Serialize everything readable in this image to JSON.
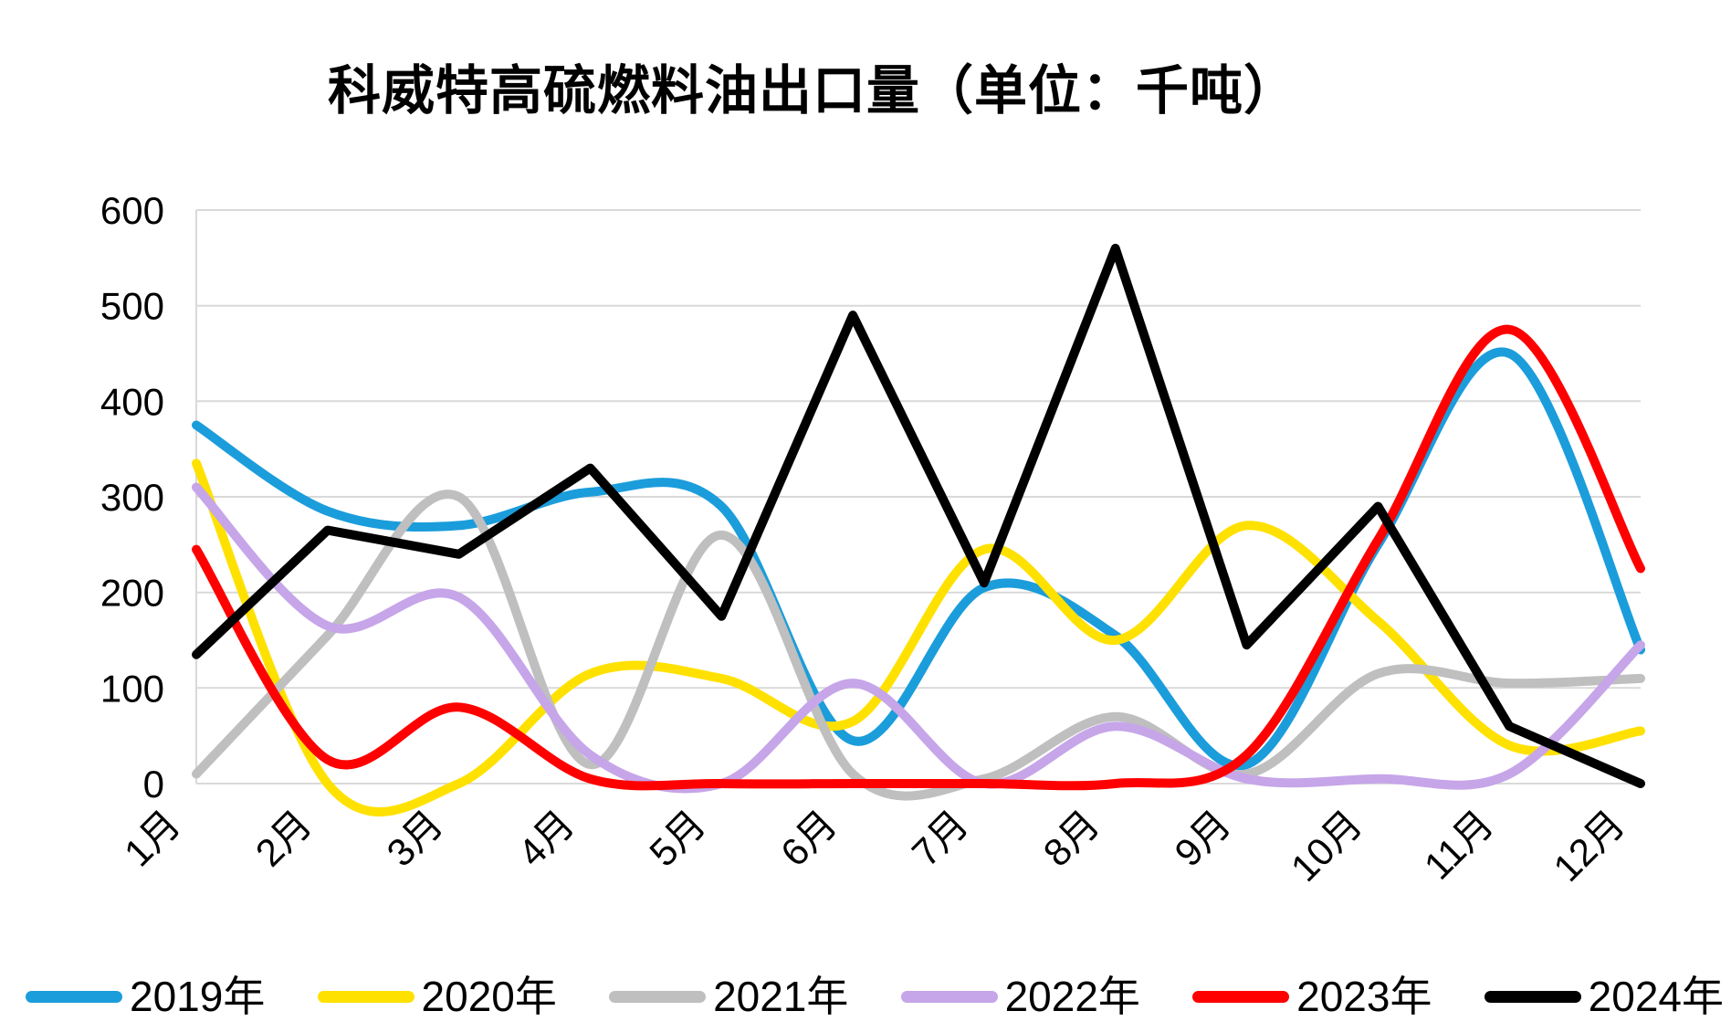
{
  "title": "科威特高硫燃料油出口量（单位：千吨）",
  "chart_data": {
    "type": "line",
    "title": "科威特高硫燃料油出口量（单位：千吨）",
    "xlabel": "",
    "ylabel": "",
    "ylim": [
      0,
      600
    ],
    "yticks": [
      0,
      100,
      200,
      300,
      400,
      500,
      600
    ],
    "grid": "horizontal",
    "legend_position": "bottom",
    "categories": [
      "1月",
      "2月",
      "3月",
      "4月",
      "5月",
      "6月",
      "7月",
      "8月",
      "9月",
      "10月",
      "11月",
      "12月"
    ],
    "series": [
      {
        "name": "2019年",
        "color": "#1B9DDB",
        "smooth": true,
        "values": [
          375,
          285,
          270,
          305,
          290,
          45,
          205,
          155,
          20,
          250,
          450,
          140
        ]
      },
      {
        "name": "2020年",
        "color": "#FFE100",
        "smooth": true,
        "values": [
          335,
          0,
          0,
          115,
          110,
          65,
          245,
          150,
          270,
          170,
          40,
          55
        ]
      },
      {
        "name": "2021年",
        "color": "#BFBFBF",
        "smooth": true,
        "values": [
          10,
          155,
          300,
          20,
          260,
          10,
          5,
          70,
          10,
          115,
          105,
          110
        ]
      },
      {
        "name": "2022年",
        "color": "#C6A5E9",
        "smooth": true,
        "values": [
          310,
          165,
          195,
          30,
          0,
          105,
          0,
          60,
          5,
          5,
          10,
          145
        ]
      },
      {
        "name": "2023年",
        "color": "#FF0000",
        "smooth": true,
        "values": [
          245,
          25,
          80,
          5,
          0,
          0,
          0,
          0,
          30,
          255,
          475,
          225
        ]
      },
      {
        "name": "2024年",
        "color": "#000000",
        "smooth": false,
        "values": [
          135,
          265,
          240,
          330,
          175,
          490,
          210,
          560,
          145,
          290,
          60,
          0
        ]
      }
    ],
    "axis_color": "#D9D9D9",
    "tick_label_color": "#000000"
  }
}
